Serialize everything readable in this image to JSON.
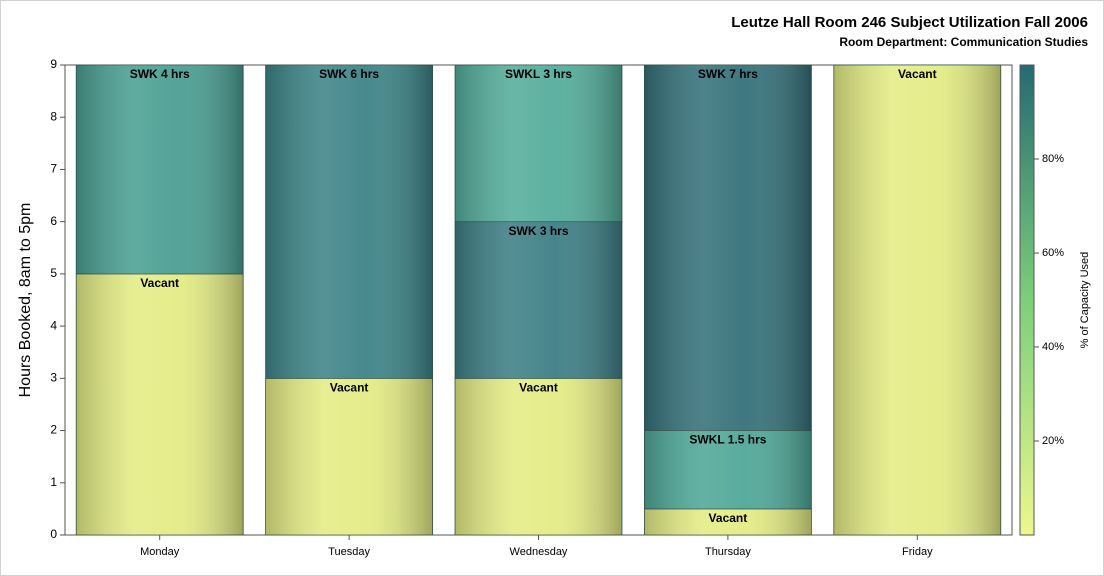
{
  "chart_data": {
    "type": "stacked-bar",
    "title": "Leutze Hall Room 246 Subject Utilization Fall 2006",
    "subtitle": "Room Department:  Communication Studies",
    "y_label": "Hours Booked, 8am to 5pm",
    "categories": [
      "Monday",
      "Tuesday",
      "Wednesday",
      "Thursday",
      "Friday"
    ],
    "segments": [
      [
        {
          "label": "Vacant",
          "value": 5,
          "color": "#e3ec84"
        },
        {
          "label": "SWK 4 hrs",
          "value": 4,
          "color": "#4a9f93"
        }
      ],
      [
        {
          "label": "Vacant",
          "value": 3,
          "color": "#e3ec84"
        },
        {
          "label": "SWK 6 hrs",
          "value": 6,
          "color": "#3d8488"
        }
      ],
      [
        {
          "label": "Vacant",
          "value": 3,
          "color": "#e3ec84"
        },
        {
          "label": "SWK 3 hrs",
          "value": 3,
          "color": "#3d7f86"
        },
        {
          "label": "SWKL 3 hrs",
          "value": 3,
          "color": "#54ad9b"
        }
      ],
      [
        {
          "label": "Vacant",
          "value": 0.5,
          "color": "#e3ec84"
        },
        {
          "label": "SWKL 1.5 hrs",
          "value": 1.5,
          "color": "#4fa898"
        },
        {
          "label": "SWK 7 hrs",
          "value": 7,
          "color": "#35717a"
        }
      ],
      [
        {
          "label": "Vacant",
          "value": 9,
          "color": "#e3ec84"
        }
      ]
    ],
    "ylim": [
      0,
      9
    ],
    "yticks": [
      0,
      1,
      2,
      3,
      4,
      5,
      6,
      7,
      8,
      9
    ],
    "colorbar": {
      "title": "% of Capacity Used",
      "lim": [
        0,
        100
      ],
      "ticks": [
        {
          "value": 20,
          "label": "20%"
        },
        {
          "value": 40,
          "label": "40%"
        },
        {
          "value": 60,
          "label": "60%"
        },
        {
          "value": 80,
          "label": "80%"
        }
      ],
      "colors": [
        "#eef78e",
        "#7ccf7a",
        "#256a72"
      ]
    }
  }
}
